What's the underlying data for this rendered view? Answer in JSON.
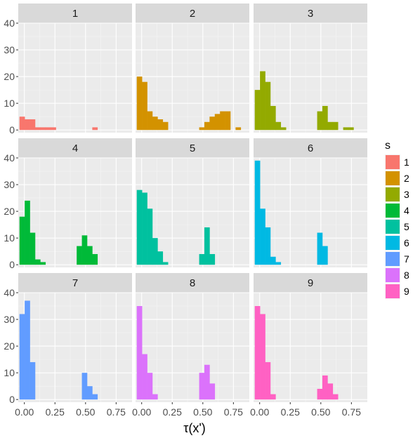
{
  "chart_data": {
    "type": "bar",
    "layout": "facet-grid-3x3",
    "xlabel": "τ(x')",
    "ylabel": "",
    "xlim": [
      -0.05,
      0.88
    ],
    "ylim": [
      -1,
      40
    ],
    "x_ticks": [
      0.0,
      0.25,
      0.5,
      0.75
    ],
    "x_tick_labels": [
      "0.00",
      "0.25",
      "0.50",
      "0.75"
    ],
    "y_ticks": [
      0,
      10,
      20,
      30,
      40
    ],
    "y_tick_labels": [
      "0",
      "10",
      "20",
      "30",
      "40"
    ],
    "bin_width": 0.0425,
    "bin_starts": [
      -0.04,
      0.0025,
      0.045,
      0.0875,
      0.13,
      0.1725,
      0.215,
      0.2575,
      0.3,
      0.3425,
      0.385,
      0.4275,
      0.47,
      0.5125,
      0.555,
      0.5975,
      0.64,
      0.6825,
      0.725,
      0.7675,
      0.81,
      0.8525
    ],
    "grid": true,
    "legend": {
      "title": "s",
      "position": "right",
      "entries": [
        "1",
        "2",
        "3",
        "4",
        "5",
        "6",
        "7",
        "8",
        "9"
      ]
    },
    "panels": [
      {
        "label": "1",
        "color": "#F8766D",
        "counts": [
          5,
          4,
          4,
          1,
          1,
          1,
          1,
          0,
          0,
          0,
          0,
          0,
          0,
          0,
          1,
          0,
          0,
          0,
          0,
          0,
          0,
          0
        ]
      },
      {
        "label": "2",
        "color": "#D39200",
        "counts": [
          20,
          18,
          7,
          5,
          4,
          3,
          0,
          0,
          0,
          0,
          0,
          0,
          1,
          3,
          5,
          6,
          7,
          7,
          0,
          1,
          0,
          0
        ]
      },
      {
        "label": "3",
        "color": "#93AA00",
        "counts": [
          15,
          22,
          18,
          9,
          3,
          1,
          0,
          0,
          0,
          0,
          0,
          0,
          7,
          9,
          3,
          3,
          0,
          1,
          1,
          0,
          0,
          0
        ]
      },
      {
        "label": "4",
        "color": "#00BA38",
        "counts": [
          18,
          24,
          12,
          2,
          1,
          0,
          0,
          0,
          0,
          0,
          0,
          7,
          11,
          7,
          4,
          0,
          0,
          0,
          0,
          0,
          0,
          0
        ]
      },
      {
        "label": "5",
        "color": "#00C19F",
        "counts": [
          28,
          27,
          21,
          10,
          5,
          1,
          0,
          0,
          0,
          0,
          0,
          0,
          4,
          14,
          4,
          0,
          0,
          0,
          0,
          0,
          0,
          0
        ]
      },
      {
        "label": "6",
        "color": "#00B9E3",
        "counts": [
          39,
          21,
          14,
          3,
          1,
          0,
          0,
          0,
          0,
          0,
          0,
          0,
          12,
          7,
          0,
          0,
          0,
          0,
          0,
          0,
          0,
          0
        ]
      },
      {
        "label": "7",
        "color": "#619CFF",
        "counts": [
          32,
          37,
          14,
          0,
          0,
          0,
          0,
          0,
          0,
          0,
          0,
          0,
          10,
          5,
          2,
          0,
          0,
          0,
          0,
          0,
          0,
          0
        ]
      },
      {
        "label": "8",
        "color": "#DB72FB",
        "counts": [
          35,
          17,
          10,
          2,
          0,
          0,
          0,
          0,
          0,
          0,
          0,
          0,
          10,
          13,
          6,
          0,
          0,
          0,
          0,
          0,
          0,
          0
        ]
      },
      {
        "label": "9",
        "color": "#FF61C3",
        "counts": [
          35,
          32,
          14,
          2,
          0,
          0,
          0,
          0,
          0,
          0,
          0,
          0,
          4,
          9,
          6,
          2,
          0,
          0,
          0,
          0,
          0,
          0
        ]
      }
    ]
  }
}
